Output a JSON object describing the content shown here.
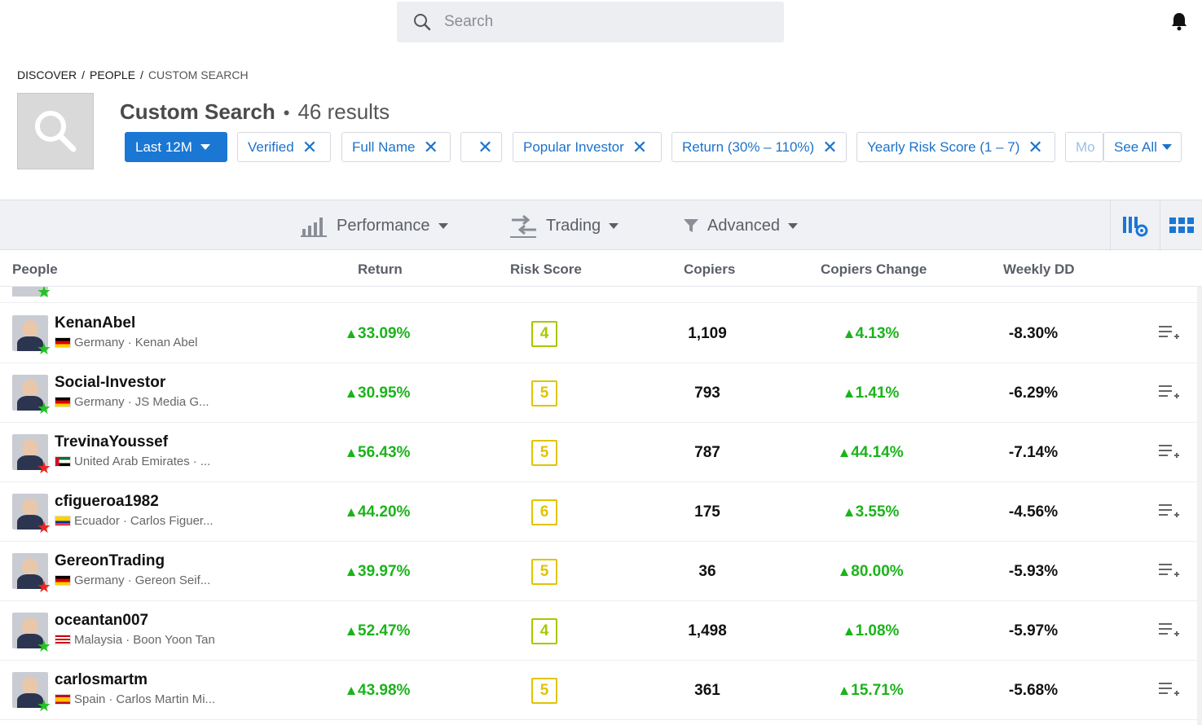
{
  "search": {
    "placeholder": "Search"
  },
  "breadcrumb": [
    "DISCOVER",
    "PEOPLE",
    "CUSTOM SEARCH"
  ],
  "header": {
    "title": "Custom Search",
    "separator": "•",
    "results": "46 results"
  },
  "filters": {
    "period": "Last 12M",
    "chips": [
      "Verified",
      "Full Name",
      "",
      "Popular Investor",
      "Return (30% – 110%)",
      "Yearly Risk Score (1 – 7)",
      "Mo"
    ],
    "see_all": "See All"
  },
  "toolbar": {
    "performance": "Performance",
    "trading": "Trading",
    "advanced": "Advanced"
  },
  "columns": [
    "People",
    "Return",
    "Risk Score",
    "Copiers",
    "Copiers Change",
    "Weekly DD"
  ],
  "colors": {
    "accent": "#1a77d4",
    "positive": "#1bb31b",
    "risk_green": "#a8c800",
    "risk_yellow": "#e0c400",
    "star_green": "#20c320",
    "star_red": "#e8251e"
  },
  "rows": [
    {
      "username": "KenanAbel",
      "country": "Germany",
      "fullname": "Kenan Abel",
      "flag": "de",
      "star": "green",
      "return": "33.09%",
      "risk": "4",
      "copiers": "1,109",
      "change": "4.13%",
      "dd": "-8.30%"
    },
    {
      "username": "Social-Investor",
      "country": "Germany",
      "fullname": "JS Media G...",
      "flag": "de",
      "star": "green",
      "return": "30.95%",
      "risk": "5",
      "copiers": "793",
      "change": "1.41%",
      "dd": "-6.29%"
    },
    {
      "username": "TrevinaYoussef",
      "country": "United Arab Emirates",
      "fullname": "...",
      "flag": "ae",
      "star": "red",
      "return": "56.43%",
      "risk": "5",
      "copiers": "787",
      "change": "44.14%",
      "dd": "-7.14%"
    },
    {
      "username": "cfigueroa1982",
      "country": "Ecuador",
      "fullname": "Carlos Figuer...",
      "flag": "ec",
      "star": "red",
      "return": "44.20%",
      "risk": "6",
      "copiers": "175",
      "change": "3.55%",
      "dd": "-4.56%"
    },
    {
      "username": "GereonTrading",
      "country": "Germany",
      "fullname": "Gereon Seif...",
      "flag": "de",
      "star": "red",
      "return": "39.97%",
      "risk": "5",
      "copiers": "36",
      "change": "80.00%",
      "dd": "-5.93%"
    },
    {
      "username": "oceantan007",
      "country": "Malaysia",
      "fullname": "Boon Yoon Tan",
      "flag": "my",
      "star": "green",
      "return": "52.47%",
      "risk": "4",
      "copiers": "1,498",
      "change": "1.08%",
      "dd": "-5.97%"
    },
    {
      "username": "carlosmartm",
      "country": "Spain",
      "fullname": "Carlos Martin Mi...",
      "flag": "es",
      "star": "green",
      "return": "43.98%",
      "risk": "5",
      "copiers": "361",
      "change": "15.71%",
      "dd": "-5.68%"
    }
  ]
}
